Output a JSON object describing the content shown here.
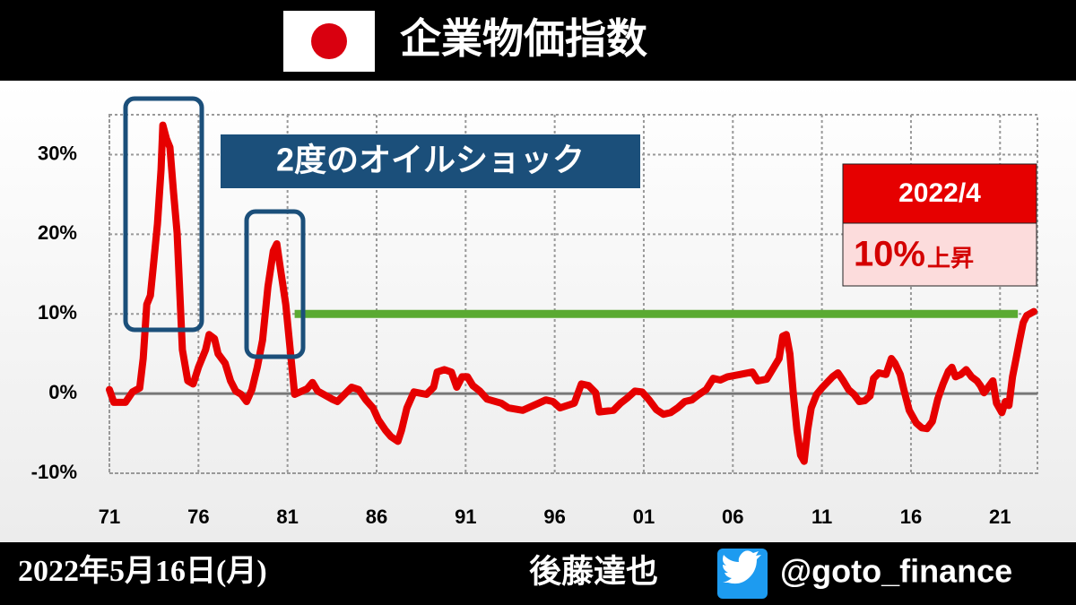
{
  "header": {
    "title": "企業物価指数"
  },
  "chart_data": {
    "type": "line",
    "x": [
      1971.0,
      1971.25,
      1971.9,
      1972.3,
      1972.7,
      1972.9,
      1973.1,
      1973.3,
      1973.5,
      1973.7,
      1973.9,
      1974.0,
      1974.2,
      1974.4,
      1974.6,
      1974.8,
      1975.1,
      1975.4,
      1975.7,
      1976.0,
      1976.4,
      1976.6,
      1976.9,
      1977.1,
      1977.5,
      1977.8,
      1978.1,
      1978.4,
      1978.7,
      1979.0,
      1979.3,
      1979.6,
      1979.9,
      1980.2,
      1980.4,
      1980.6,
      1980.9,
      1981.2,
      1981.4,
      1982.1,
      1982.4,
      1982.7,
      1983.5,
      1983.8,
      1984.2,
      1984.6,
      1985.0,
      1985.4,
      1985.8,
      1986.1,
      1986.5,
      1986.8,
      1987.2,
      1987.4,
      1987.7,
      1988.1,
      1988.8,
      1989.2,
      1989.4,
      1989.8,
      1990.2,
      1990.5,
      1990.8,
      1991.1,
      1991.4,
      1991.8,
      1992.2,
      1993.0,
      1993.4,
      1994.2,
      1995.1,
      1995.5,
      1995.9,
      1996.3,
      1997.1,
      1997.5,
      1997.9,
      1998.3,
      1998.5,
      1999.3,
      1999.7,
      2000.1,
      2000.5,
      2000.9,
      2001.3,
      2001.7,
      2002.1,
      2002.5,
      2002.9,
      2003.3,
      2003.7,
      2004.1,
      2004.5,
      2004.9,
      2005.3,
      2005.7,
      2006.4,
      2007.1,
      2007.4,
      2007.9,
      2008.3,
      2008.6,
      2008.8,
      2009.0,
      2009.2,
      2009.4,
      2009.6,
      2009.8,
      2010.0,
      2010.2,
      2010.4,
      2010.7,
      2011.0,
      2011.6,
      2011.9,
      2012.2,
      2012.5,
      2012.8,
      2013.1,
      2013.4,
      2013.7,
      2013.9,
      2014.2,
      2014.6,
      2014.9,
      2015.1,
      2015.4,
      2015.6,
      2015.9,
      2016.3,
      2016.6,
      2016.9,
      2017.2,
      2017.5,
      2017.8,
      2018.1,
      2018.3,
      2018.5,
      2018.8,
      2019.1,
      2019.4,
      2019.7,
      2019.9,
      2020.1,
      2020.4,
      2020.6,
      2020.8,
      2021.1,
      2021.3,
      2021.5,
      2021.7,
      2021.9,
      2022.1,
      2022.3,
      2022.5,
      2022.9
    ],
    "series": [
      {
        "color": "#e60000",
        "values": [
          0.5,
          -1.1,
          -1.1,
          0.2,
          0.7,
          4.4,
          11.2,
          12.3,
          16.8,
          21.3,
          28.1,
          33.7,
          32.0,
          30.9,
          25.3,
          20.2,
          5.5,
          1.6,
          1.2,
          3.3,
          5.5,
          7.4,
          6.9,
          5.0,
          3.8,
          1.6,
          0.3,
          -0.1,
          -1.0,
          0.5,
          3.3,
          6.7,
          13.4,
          17.9,
          18.8,
          15.7,
          11.2,
          4.4,
          -0.1,
          0.6,
          1.4,
          0.3,
          -0.7,
          -1.0,
          -0.1,
          0.8,
          0.5,
          -0.8,
          -1.8,
          -3.3,
          -4.6,
          -5.4,
          -6.0,
          -4.6,
          -1.8,
          0.2,
          -0.1,
          0.8,
          2.7,
          3.0,
          2.7,
          0.8,
          2.1,
          2.1,
          1.0,
          0.3,
          -0.7,
          -1.2,
          -1.8,
          -2.1,
          -1.2,
          -0.8,
          -1.0,
          -1.8,
          -1.2,
          1.2,
          1.0,
          0.1,
          -2.3,
          -2.1,
          -1.2,
          -0.5,
          0.3,
          0.2,
          -0.8,
          -2.0,
          -2.6,
          -2.4,
          -1.8,
          -1.0,
          -0.8,
          -0.1,
          0.5,
          1.9,
          1.7,
          2.1,
          2.4,
          2.7,
          1.6,
          1.8,
          3.3,
          4.4,
          7.2,
          7.4,
          5.0,
          -0.1,
          -4.6,
          -7.7,
          -8.5,
          -4.6,
          -1.8,
          -0.1,
          0.7,
          2.1,
          2.6,
          1.6,
          0.5,
          -0.1,
          -1.0,
          -0.9,
          -0.3,
          1.9,
          2.6,
          2.4,
          4.4,
          3.8,
          2.4,
          0.5,
          -2.1,
          -3.7,
          -4.3,
          -4.4,
          -3.5,
          -0.7,
          1.2,
          2.8,
          3.3,
          2.1,
          2.4,
          3.0,
          2.1,
          1.6,
          1.0,
          0.1,
          1.0,
          1.6,
          -1.2,
          -2.4,
          -1.0,
          -1.5,
          2.1,
          4.4,
          6.7,
          8.9,
          9.8,
          10.3
        ]
      }
    ],
    "xlim": [
      1971,
      2023.1
    ],
    "xticks": [
      {
        "value": 1971,
        "label": "71"
      },
      {
        "value": 1976,
        "label": "76"
      },
      {
        "value": 1981,
        "label": "81"
      },
      {
        "value": 1986,
        "label": "86"
      },
      {
        "value": 1991,
        "label": "91"
      },
      {
        "value": 1996,
        "label": "96"
      },
      {
        "value": 2001,
        "label": "01"
      },
      {
        "value": 2006,
        "label": "06"
      },
      {
        "value": 2011,
        "label": "11"
      },
      {
        "value": 2016,
        "label": "16"
      },
      {
        "value": 2021,
        "label": "21"
      }
    ],
    "ylim": [
      -10,
      35
    ],
    "yticks": [
      {
        "value": -10,
        "label": "-10%"
      },
      {
        "value": 0,
        "label": "0%"
      },
      {
        "value": 10,
        "label": "10%"
      },
      {
        "value": 20,
        "label": "20%"
      },
      {
        "value": 30,
        "label": "30%"
      }
    ],
    "grid": true,
    "reference_line": {
      "value": 10,
      "xrange": [
        1981.4,
        2022.0
      ],
      "color": "#5aaa32"
    },
    "annotations": {
      "oil_shock": "2度のオイルショック",
      "latest_date": "2022/4",
      "latest_change": "10%",
      "latest_change_suffix": "上昇"
    }
  },
  "footer": {
    "date": "2022年5月16日(月)",
    "author": "後藤達也",
    "handle": "@goto_finance"
  }
}
